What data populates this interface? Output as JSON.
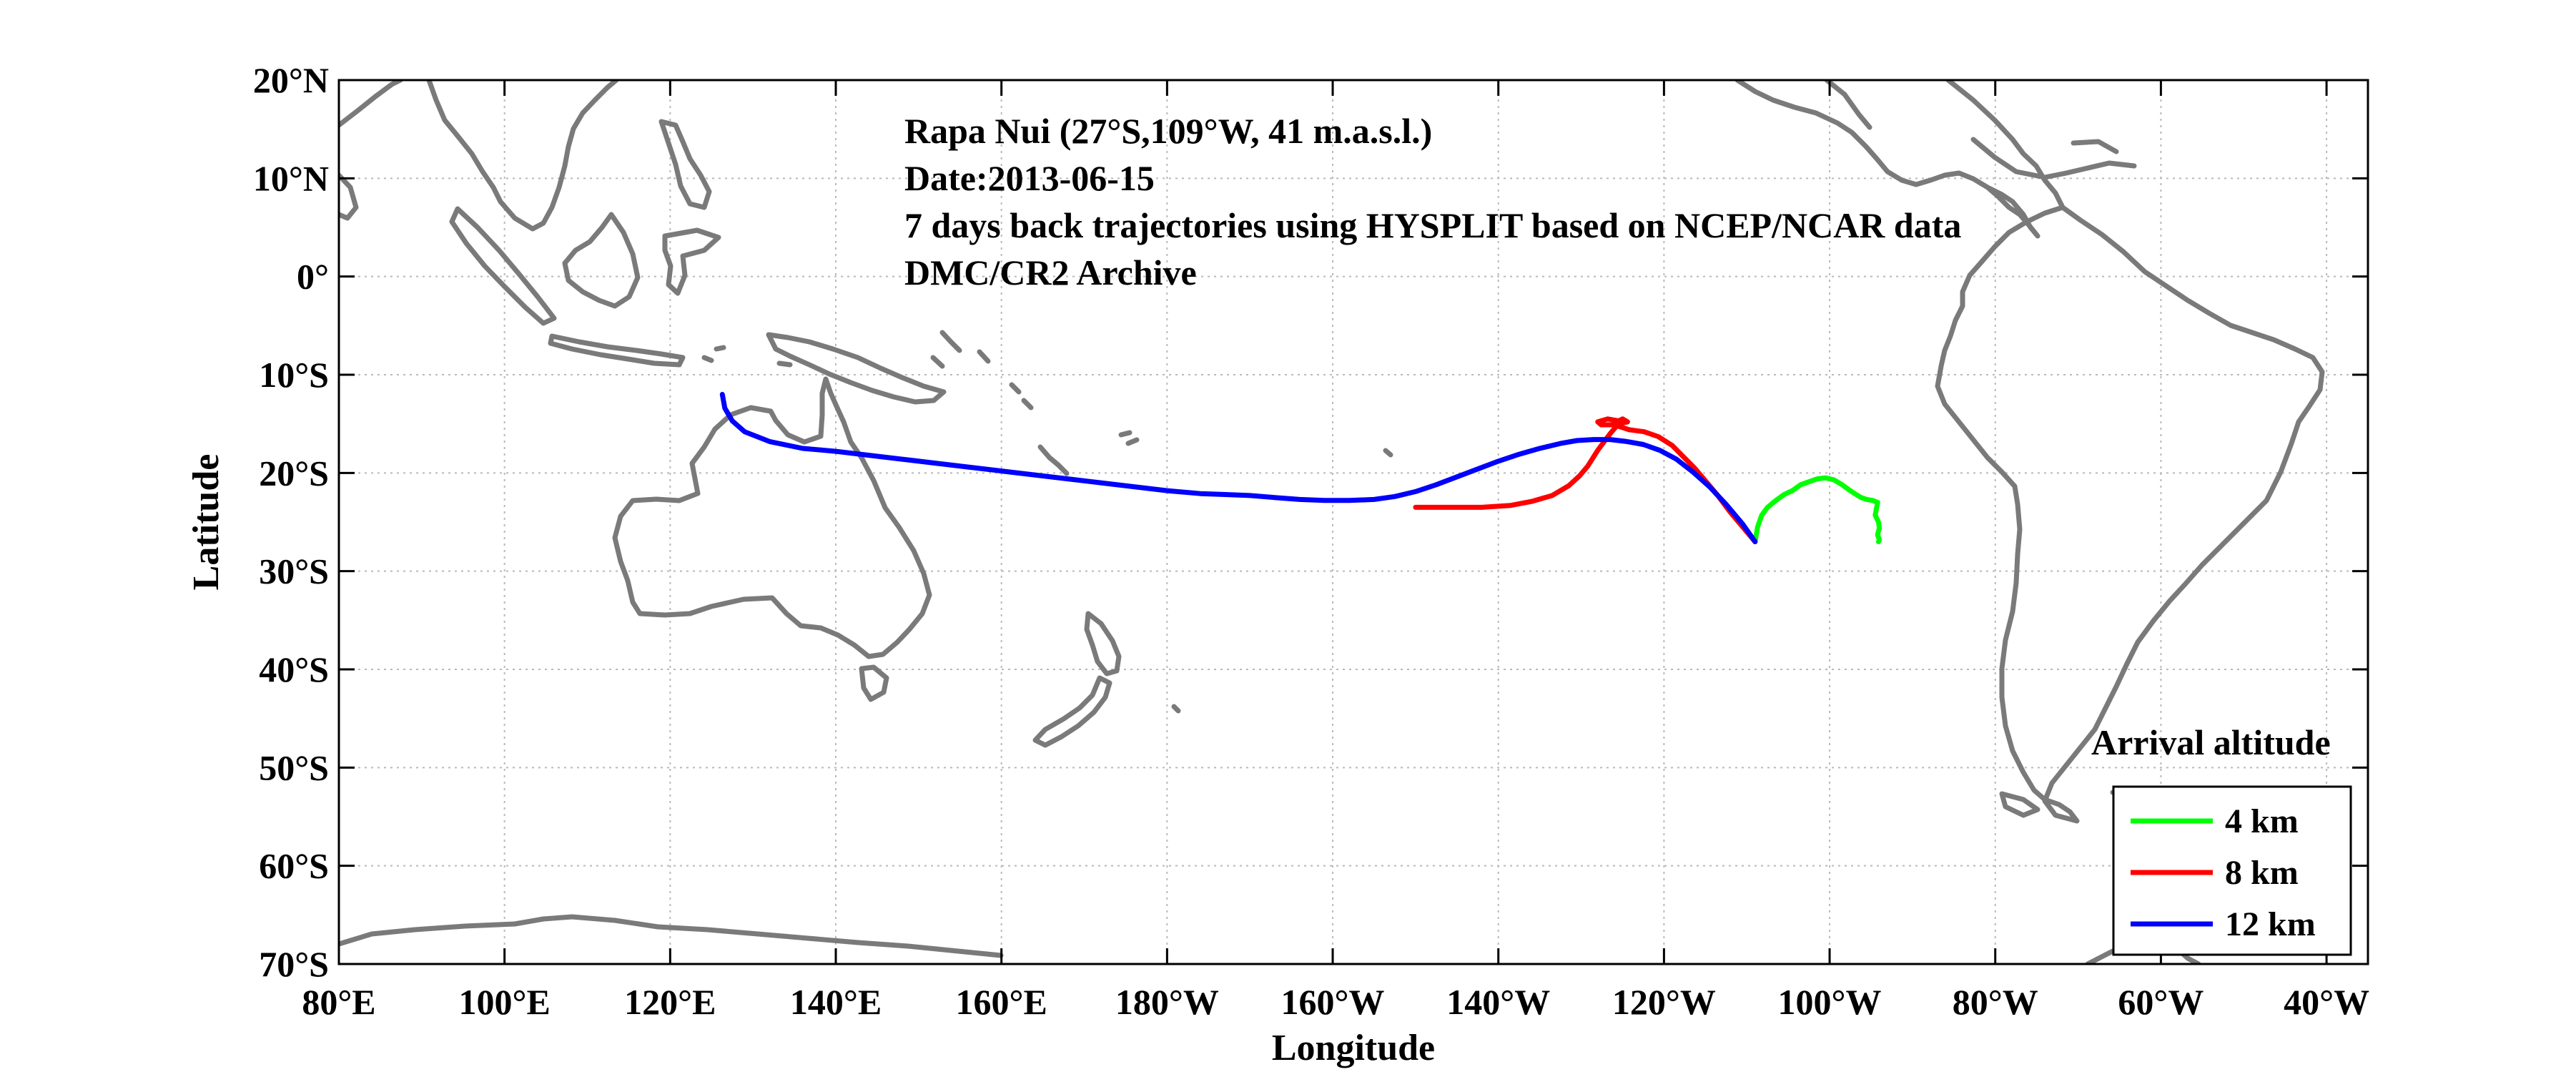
{
  "chart_data": {
    "type": "line",
    "title": "",
    "xlabel": "Longitude",
    "ylabel": "Latitude",
    "xlim": [
      80,
      325
    ],
    "ylim": [
      -70,
      20
    ],
    "grid": true,
    "legend_position": "bottom-right",
    "x_ticks": [
      {
        "value": 80,
        "label": "80°E"
      },
      {
        "value": 100,
        "label": "100°E"
      },
      {
        "value": 120,
        "label": "120°E"
      },
      {
        "value": 140,
        "label": "140°E"
      },
      {
        "value": 160,
        "label": "160°E"
      },
      {
        "value": 180,
        "label": "180°W"
      },
      {
        "value": 200,
        "label": "160°W"
      },
      {
        "value": 220,
        "label": "140°W"
      },
      {
        "value": 240,
        "label": "120°W"
      },
      {
        "value": 260,
        "label": "100°W"
      },
      {
        "value": 280,
        "label": "80°W"
      },
      {
        "value": 300,
        "label": "60°W"
      },
      {
        "value": 320,
        "label": "40°W"
      }
    ],
    "y_ticks": [
      {
        "value": 20,
        "label": "20°N"
      },
      {
        "value": 10,
        "label": "10°N"
      },
      {
        "value": 0,
        "label": "0°"
      },
      {
        "value": -10,
        "label": "10°S"
      },
      {
        "value": -20,
        "label": "20°S"
      },
      {
        "value": -30,
        "label": "30°S"
      },
      {
        "value": -40,
        "label": "40°S"
      },
      {
        "value": -50,
        "label": "50°S"
      },
      {
        "value": -60,
        "label": "60°S"
      },
      {
        "value": -70,
        "label": "70°S"
      }
    ],
    "annotations": [
      "Rapa Nui (27°S,109°W, 41 m.a.s.l.)",
      "Date:2013-06-15",
      "7 days back trajectories using HYSPLIT based on NCEP/NCAR data",
      "DMC/CR2 Archive"
    ],
    "legend_title": "Arrival altitude",
    "series": [
      {
        "name": "4 km",
        "color": "#00ff00",
        "x": [
          251.0,
          251.3,
          251.8,
          252.5,
          253.5,
          254.5,
          255.5,
          256.5,
          257.5,
          258.5,
          259.5,
          260.5,
          261.5,
          262.5,
          263.2,
          263.8,
          264.5,
          265.2,
          265.8,
          265.5,
          265.9,
          266.0,
          265.8,
          266.0,
          265.9
        ],
        "y": [
          -27.0,
          -25.5,
          -24.3,
          -23.5,
          -22.8,
          -22.2,
          -21.8,
          -21.2,
          -20.9,
          -20.6,
          -20.5,
          -20.7,
          -21.2,
          -21.8,
          -22.2,
          -22.5,
          -22.7,
          -22.8,
          -23.0,
          -24.3,
          -25.0,
          -25.6,
          -26.3,
          -26.8,
          -27.0
        ]
      },
      {
        "name": "8 km",
        "color": "#ff0000",
        "x": [
          251.0,
          249.5,
          248.0,
          246.5,
          245.0,
          243.7,
          242.4,
          241.0,
          239.3,
          237.6,
          235.8,
          234.0,
          232.4,
          232.0,
          233.2,
          234.5,
          235.0,
          235.6,
          234.5,
          233.5,
          232.0,
          230.8,
          229.8,
          228.5,
          226.5,
          224.0,
          221.5,
          218.0,
          214.0,
          210.0
        ],
        "y": [
          -27.0,
          -25.5,
          -24.0,
          -22.3,
          -20.8,
          -19.5,
          -18.4,
          -17.2,
          -16.3,
          -15.8,
          -15.6,
          -15.1,
          -15.1,
          -14.8,
          -14.5,
          -14.7,
          -14.5,
          -14.8,
          -15.0,
          -16.0,
          -17.7,
          -19.3,
          -20.3,
          -21.3,
          -22.3,
          -22.9,
          -23.3,
          -23.5,
          -23.5,
          -23.5
        ]
      },
      {
        "name": "12 km",
        "color": "#0000ff",
        "x": [
          251.0,
          249.5,
          247.5,
          245.5,
          243.5,
          241.5,
          239.5,
          237.5,
          235.5,
          233.5,
          231.5,
          229.5,
          227.5,
          225.0,
          222.5,
          220.0,
          217.5,
          215.0,
          212.5,
          210.0,
          207.5,
          205.0,
          202.0,
          199.0,
          196.0,
          193.0,
          190.0,
          187.0,
          184.0,
          180.0,
          176.0,
          172.0,
          168.0,
          164.0,
          160.0,
          156.0,
          152.0,
          148.0,
          144.0,
          140.0,
          136.0,
          132.0,
          129.0,
          127.5,
          126.6,
          126.3
        ],
        "y": [
          -27.0,
          -25.2,
          -23.2,
          -21.4,
          -19.9,
          -18.6,
          -17.7,
          -17.1,
          -16.8,
          -16.6,
          -16.6,
          -16.7,
          -17.0,
          -17.5,
          -18.1,
          -18.8,
          -19.6,
          -20.4,
          -21.2,
          -21.9,
          -22.4,
          -22.7,
          -22.8,
          -22.8,
          -22.7,
          -22.5,
          -22.3,
          -22.2,
          -22.1,
          -21.8,
          -21.4,
          -21.0,
          -20.6,
          -20.2,
          -19.8,
          -19.4,
          -19.0,
          -18.6,
          -18.2,
          -17.8,
          -17.5,
          -16.8,
          -15.8,
          -14.7,
          -13.4,
          -12.0
        ]
      }
    ]
  }
}
